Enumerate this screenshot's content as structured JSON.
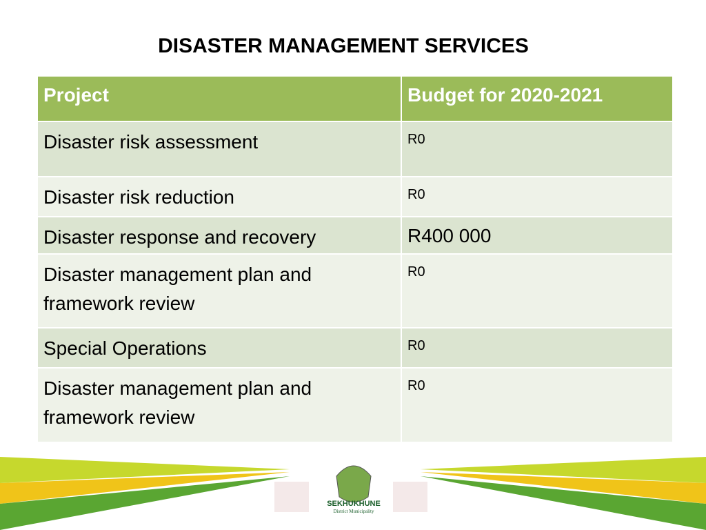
{
  "title": "DISASTER MANAGEMENT SERVICES",
  "table": {
    "header": [
      "Project",
      "Budget for 2020-2021"
    ],
    "rows": [
      [
        "Disaster risk assessment",
        "R0"
      ],
      [
        "Disaster risk reduction",
        "R0"
      ],
      [
        "Disaster response and recovery",
        "R400 000"
      ],
      [
        "Disaster management plan and framework  review",
        "R0"
      ],
      [
        "Special  Operations",
        "R0"
      ],
      [
        "Disaster management plan and framework  review",
        "R0"
      ]
    ]
  },
  "footer": {
    "logo_name": "SEKHUKHUNE",
    "logo_subtitle": "District Municipality"
  }
}
